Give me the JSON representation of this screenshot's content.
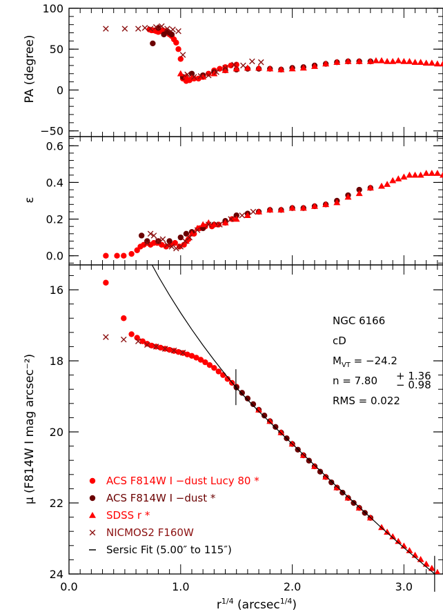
{
  "colors": {
    "acs_lucy": "#ff0000",
    "acs_dust": "#6b0000",
    "sdss": "#ff0000",
    "nicmos": "#8b1010",
    "fit": "#000000"
  },
  "chart_data": [
    {
      "type": "scatter",
      "panel": "pa",
      "ylabel": "PA (degree)",
      "xlim": [
        0.0,
        3.35
      ],
      "ylim": [
        -57,
        100
      ],
      "yticks": [
        -50,
        0,
        50,
        100
      ],
      "yticklabels": [
        "−50",
        "0",
        "50",
        "100"
      ],
      "series": [
        {
          "name": "ACS F814W I −dust Lucy 80 *",
          "marker": "circle",
          "color": "acs_lucy",
          "x": [
            0.72,
            0.74,
            0.76,
            0.78,
            0.8,
            0.82,
            0.84,
            0.86,
            0.88,
            0.9,
            0.92,
            0.94,
            0.96,
            0.98,
            1.0,
            1.02,
            1.05,
            1.08,
            1.12,
            1.16,
            1.2,
            1.25,
            1.3,
            1.35,
            1.4,
            1.45,
            1.5
          ],
          "y": [
            74,
            73,
            73,
            72,
            71,
            72,
            73,
            72,
            70,
            68,
            66,
            62,
            58,
            50,
            38,
            14,
            11,
            12,
            14,
            14,
            16,
            20,
            24,
            26,
            28,
            30,
            31
          ]
        },
        {
          "name": "ACS F814W I −dust *",
          "marker": "circle",
          "color": "acs_dust",
          "x": [
            0.75,
            0.8,
            0.85,
            0.88,
            0.9,
            0.92,
            1.02,
            1.1,
            1.2,
            1.3,
            1.4,
            1.5,
            1.6,
            1.7,
            1.8,
            1.9,
            2.0,
            2.1,
            2.2,
            2.3,
            2.4,
            2.5,
            2.6,
            2.7
          ],
          "y": [
            57,
            76,
            68,
            72,
            70,
            68,
            16,
            20,
            18,
            22,
            24,
            25,
            26,
            26,
            26,
            25,
            27,
            28,
            30,
            32,
            34,
            35,
            35,
            35
          ]
        },
        {
          "name": "SDSS r *",
          "marker": "triangle",
          "color": "sdss",
          "x": [
            1.0,
            1.05,
            1.1,
            1.2,
            1.3,
            1.4,
            1.5,
            1.6,
            1.7,
            1.8,
            1.9,
            2.0,
            2.1,
            2.2,
            2.3,
            2.4,
            2.5,
            2.6,
            2.7,
            2.75,
            2.8,
            2.85,
            2.9,
            2.95,
            3.0,
            3.05,
            3.1,
            3.15,
            3.2,
            3.25,
            3.3,
            3.35
          ],
          "y": [
            20,
            17,
            15,
            16,
            20,
            24,
            26,
            27,
            27,
            26,
            25,
            26,
            27,
            29,
            32,
            34,
            35,
            35,
            35,
            36,
            36,
            35,
            35,
            36,
            35,
            35,
            34,
            34,
            33,
            33,
            32,
            32
          ]
        },
        {
          "name": "NICMOS2 F160W",
          "marker": "x",
          "color": "nicmos",
          "x": [
            0.33,
            0.5,
            0.62,
            0.68,
            0.73,
            0.78,
            0.83,
            0.88,
            0.93,
            0.98,
            1.02,
            1.06,
            1.12,
            1.18,
            1.25,
            1.32,
            1.4,
            1.48,
            1.56,
            1.64,
            1.72
          ],
          "y": [
            75,
            75,
            75,
            76,
            75,
            77,
            78,
            75,
            74,
            72,
            43,
            19,
            16,
            17,
            18,
            22,
            27,
            31,
            30,
            35,
            34
          ]
        }
      ]
    },
    {
      "type": "scatter",
      "panel": "ellipticity",
      "ylabel": "ε",
      "xlim": [
        0.0,
        3.35
      ],
      "ylim": [
        -0.05,
        0.65
      ],
      "yticks": [
        0.0,
        0.2,
        0.4,
        0.6
      ],
      "yticklabels": [
        "0.0",
        "0.2",
        "0.4",
        "0.6"
      ],
      "series": [
        {
          "name": "ACS F814W I −dust Lucy 80 *",
          "marker": "circle",
          "color": "acs_lucy",
          "x": [
            0.33,
            0.43,
            0.49,
            0.56,
            0.61,
            0.64,
            0.67,
            0.7,
            0.73,
            0.76,
            0.79,
            0.83,
            0.87,
            0.91,
            0.95,
            0.99,
            1.03,
            1.07,
            1.12,
            1.17,
            1.22,
            1.28,
            1.34,
            1.4,
            1.46
          ],
          "y": [
            0.0,
            0.0,
            0.0,
            0.01,
            0.03,
            0.05,
            0.06,
            0.07,
            0.06,
            0.07,
            0.07,
            0.06,
            0.05,
            0.06,
            0.07,
            0.05,
            0.06,
            0.09,
            0.12,
            0.15,
            0.16,
            0.16,
            0.17,
            0.18,
            0.2
          ]
        },
        {
          "name": "ACS F814W I −dust *",
          "marker": "circle",
          "color": "acs_dust",
          "x": [
            0.65,
            0.7,
            0.8,
            0.9,
            1.0,
            1.05,
            1.1,
            1.2,
            1.3,
            1.4,
            1.5,
            1.6,
            1.7,
            1.8,
            1.9,
            2.0,
            2.1,
            2.2,
            2.3,
            2.4,
            2.5,
            2.6,
            2.7
          ],
          "y": [
            0.11,
            0.08,
            0.08,
            0.08,
            0.1,
            0.12,
            0.13,
            0.15,
            0.17,
            0.19,
            0.22,
            0.23,
            0.24,
            0.25,
            0.25,
            0.26,
            0.26,
            0.27,
            0.28,
            0.3,
            0.33,
            0.36,
            0.37
          ]
        },
        {
          "name": "SDSS r *",
          "marker": "triangle",
          "color": "sdss",
          "x": [
            1.05,
            1.1,
            1.15,
            1.2,
            1.25,
            1.3,
            1.4,
            1.5,
            1.6,
            1.7,
            1.8,
            1.9,
            2.0,
            2.1,
            2.2,
            2.3,
            2.4,
            2.5,
            2.6,
            2.7,
            2.8,
            2.85,
            2.9,
            2.95,
            3.0,
            3.05,
            3.1,
            3.15,
            3.2,
            3.25,
            3.3,
            3.35
          ],
          "y": [
            0.08,
            0.12,
            0.15,
            0.17,
            0.18,
            0.17,
            0.18,
            0.2,
            0.22,
            0.24,
            0.25,
            0.25,
            0.26,
            0.26,
            0.27,
            0.28,
            0.29,
            0.32,
            0.34,
            0.37,
            0.38,
            0.39,
            0.41,
            0.42,
            0.43,
            0.44,
            0.44,
            0.44,
            0.45,
            0.45,
            0.45,
            0.44
          ]
        },
        {
          "name": "NICMOS2 F160W",
          "marker": "x",
          "color": "nicmos",
          "x": [
            0.7,
            0.73,
            0.76,
            0.8,
            0.84,
            0.88,
            0.92,
            0.96,
            1.0,
            1.04,
            1.08,
            1.15,
            1.25,
            1.35,
            1.45,
            1.55,
            1.65
          ],
          "y": [
            0.07,
            0.12,
            0.11,
            0.08,
            0.09,
            0.06,
            0.05,
            0.04,
            0.05,
            0.08,
            0.1,
            0.14,
            0.17,
            0.17,
            0.2,
            0.22,
            0.24
          ]
        }
      ]
    },
    {
      "type": "scatter",
      "panel": "surface-brightness",
      "ylabel": "μ (F814W I mag arcsec⁻²)",
      "xlabel": "r¹ᐟ⁴ (arcsec¹ᐟ⁴)",
      "xlim": [
        0.0,
        3.35
      ],
      "ylim": [
        24.0,
        15.3
      ],
      "yticks": [
        16,
        18,
        20,
        22,
        24
      ],
      "yticklabels": [
        "16",
        "18",
        "20",
        "22",
        "24"
      ],
      "xticks": [
        0.0,
        1.0,
        2.0,
        3.0
      ],
      "xticklabels": [
        "0.0",
        "1.0",
        "2.0",
        "3.0"
      ],
      "fit_range_x": [
        1.495,
        3.275
      ],
      "series": [
        {
          "name": "ACS F814W I −dust Lucy 80 *",
          "marker": "circle",
          "color": "acs_lucy",
          "x": [
            0.33,
            0.49,
            0.56,
            0.61,
            0.66,
            0.7,
            0.74,
            0.78,
            0.82,
            0.86,
            0.9,
            0.94,
            0.98,
            1.02,
            1.06,
            1.1,
            1.14,
            1.18,
            1.22,
            1.26,
            1.3,
            1.34,
            1.38,
            1.42,
            1.46,
            1.5
          ],
          "y": [
            15.8,
            16.8,
            17.25,
            17.35,
            17.45,
            17.52,
            17.57,
            17.6,
            17.63,
            17.66,
            17.69,
            17.72,
            17.75,
            17.78,
            17.82,
            17.86,
            17.91,
            17.97,
            18.04,
            18.12,
            18.2,
            18.3,
            18.4,
            18.51,
            18.62,
            18.73
          ]
        },
        {
          "name": "ACS F814W I −dust *",
          "marker": "circle",
          "color": "acs_dust",
          "x": [
            1.5,
            1.55,
            1.6,
            1.65,
            1.7,
            1.75,
            1.8,
            1.85,
            1.9,
            1.95,
            2.0,
            2.05,
            2.1,
            2.15,
            2.2,
            2.25,
            2.3,
            2.35,
            2.4,
            2.45,
            2.5,
            2.55,
            2.6,
            2.65,
            2.7
          ],
          "y": [
            18.75,
            18.9,
            19.06,
            19.22,
            19.38,
            19.54,
            19.7,
            19.86,
            20.02,
            20.18,
            20.34,
            20.5,
            20.66,
            20.81,
            20.97,
            21.12,
            21.27,
            21.42,
            21.57,
            21.71,
            21.86,
            22.0,
            22.14,
            22.28,
            22.42
          ]
        },
        {
          "name": "SDSS r *",
          "marker": "triangle",
          "color": "sdss",
          "x": [
            1.7,
            1.8,
            1.9,
            2.0,
            2.1,
            2.2,
            2.3,
            2.4,
            2.5,
            2.6,
            2.7,
            2.8,
            2.85,
            2.9,
            2.95,
            3.0,
            3.05,
            3.1,
            3.15,
            3.2,
            3.25,
            3.3
          ],
          "y": [
            19.38,
            19.7,
            20.02,
            20.34,
            20.66,
            20.97,
            21.27,
            21.57,
            21.86,
            22.14,
            22.42,
            22.69,
            22.82,
            22.95,
            23.08,
            23.21,
            23.34,
            23.47,
            23.59,
            23.72,
            23.84,
            23.96
          ]
        },
        {
          "name": "NICMOS2 F160W",
          "marker": "x",
          "color": "nicmos",
          "x": [
            0.33,
            0.49,
            0.62,
            0.7,
            0.78,
            0.86,
            0.94,
            1.02
          ],
          "y": [
            17.33,
            17.4,
            17.45,
            17.55,
            17.6,
            17.66,
            17.71,
            17.77
          ]
        },
        {
          "name": "Sersic Fit (5.00″ to 115″)",
          "marker": "line",
          "color": "fit",
          "x": [
            0.7,
            0.8,
            0.9,
            1.0,
            1.1,
            1.2,
            1.3,
            1.4,
            1.5,
            1.6,
            1.7,
            1.8,
            1.9,
            2.0,
            2.1,
            2.2,
            2.3,
            2.4,
            2.5,
            2.6,
            2.7,
            2.8,
            2.9,
            3.0,
            3.1,
            3.2,
            3.3,
            3.35
          ],
          "y": [
            15.05,
            15.62,
            16.15,
            16.65,
            17.12,
            17.56,
            17.98,
            18.38,
            18.76,
            19.1,
            19.42,
            19.73,
            20.04,
            20.34,
            20.64,
            20.94,
            21.24,
            21.54,
            21.83,
            22.12,
            22.41,
            22.7,
            22.98,
            23.26,
            23.53,
            23.8,
            24.06,
            24.18
          ]
        }
      ]
    }
  ],
  "annotations": {
    "galaxy": "NGC 6166",
    "type": "cD",
    "mag_prefix": "M",
    "mag_sub": "VT",
    "mag_value": " = −24.2",
    "n_prefix": "n  = 7.80",
    "n_up": "+ 1.36",
    "n_down": "− 0.98",
    "rms": "RMS = 0.022"
  },
  "legend": [
    {
      "label": "ACS F814W I −dust Lucy 80 *",
      "marker": "circle",
      "color": "acs_lucy"
    },
    {
      "label": "ACS F814W I −dust *",
      "marker": "circle",
      "color": "acs_dust"
    },
    {
      "label": "SDSS r *",
      "marker": "triangle",
      "color": "sdss"
    },
    {
      "label": "NICMOS2 F160W",
      "marker": "x",
      "color": "nicmos"
    },
    {
      "label": "Sersic Fit (5.00″ to 115″)",
      "marker": "line",
      "color": "fit"
    }
  ],
  "axes_text": {
    "pa_ylabel": "PA (degree)",
    "eps_ylabel": "ε",
    "mu_ylabel": "μ (F814W I mag arcsec⁻²)",
    "xlabel_main": "r",
    "xlabel_sup": "1/4",
    "xlabel_mid": " (arcsec",
    "xlabel_sup2": "1/4",
    "xlabel_end": ")"
  }
}
